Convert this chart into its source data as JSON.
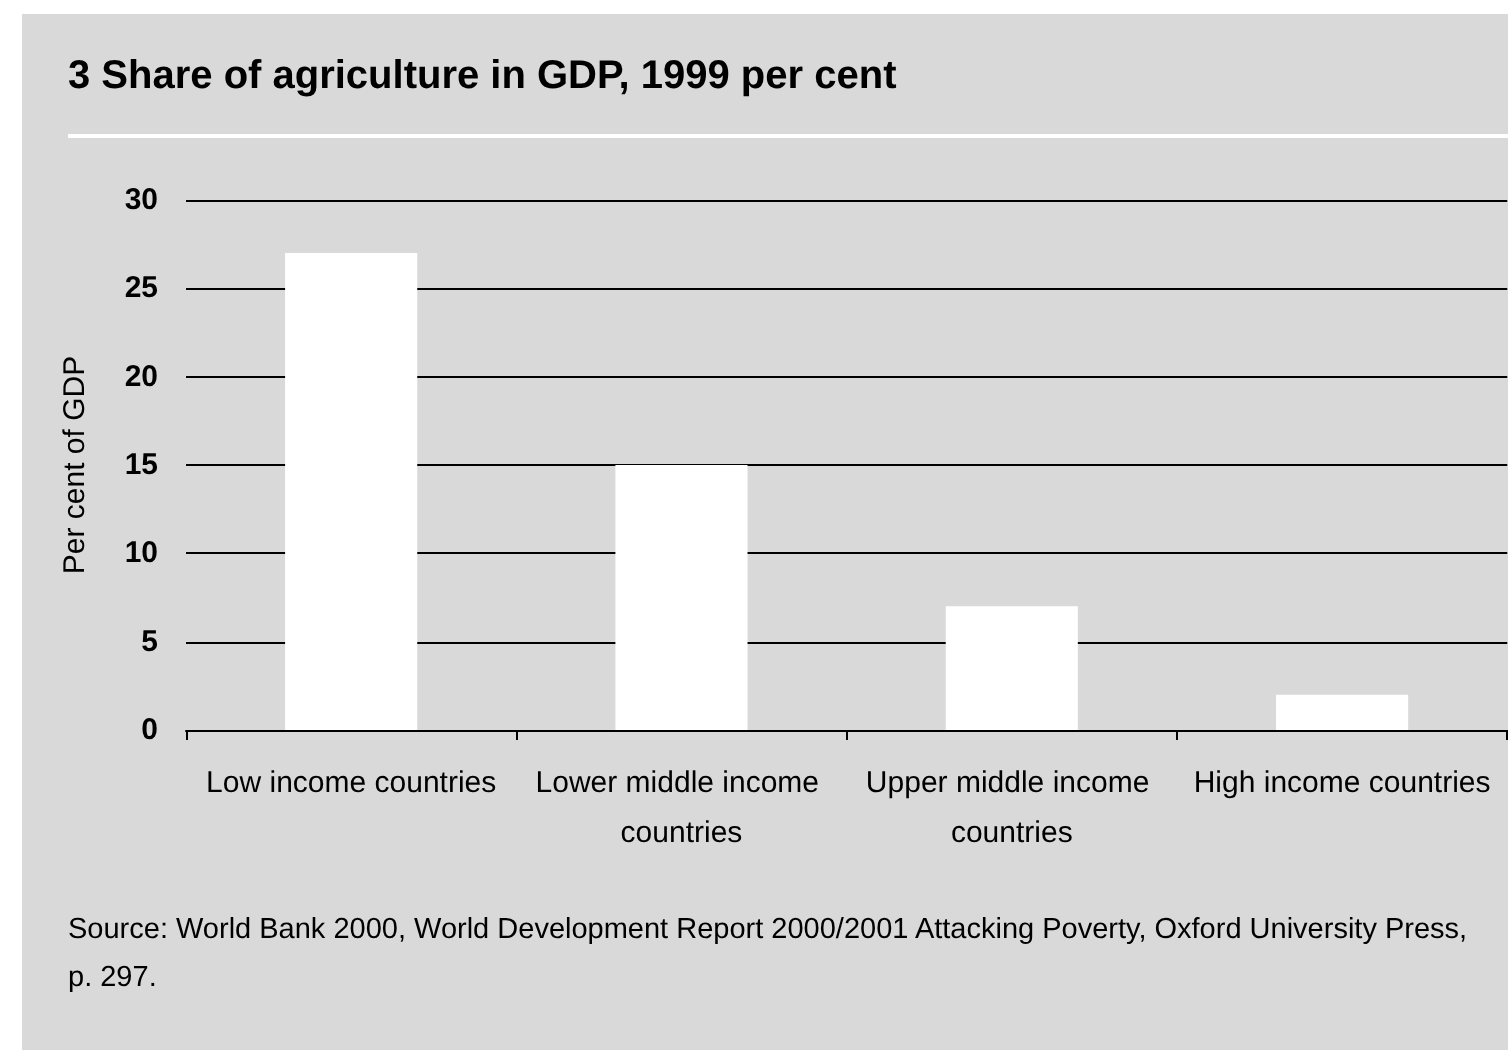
{
  "chart_data": {
    "type": "bar",
    "title": "3  Share of agriculture in GDP, 1999 per cent",
    "ylabel": "Per cent of GDP",
    "categories": [
      "Low income countries",
      "Lower middle income countries",
      "Upper middle income countries",
      "High income countries"
    ],
    "values": [
      27,
      15,
      7,
      2
    ],
    "color": "#ffffff",
    "ylim": [
      0,
      30
    ],
    "yticks": [
      0,
      5,
      10,
      15,
      20,
      25,
      30
    ],
    "grid": "y",
    "annotations": [
      "Source: World Bank 2000, World Development Report 2000/2001 Attacking Poverty, Oxford University Press, p. 297."
    ]
  }
}
